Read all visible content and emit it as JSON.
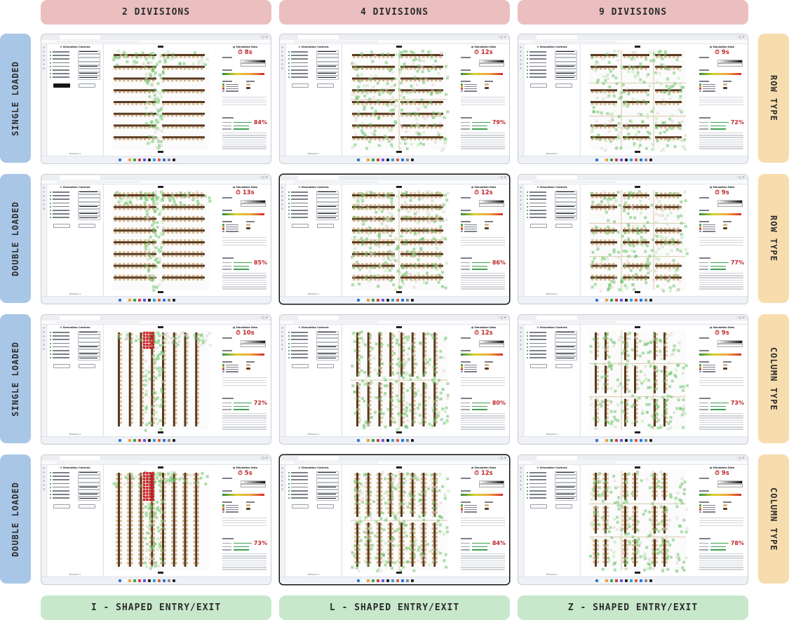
{
  "columns": [
    "2 DIVISIONS",
    "4 DIVISIONS",
    "9 DIVISIONS"
  ],
  "rows_left": [
    "SINGLE LOADED",
    "DOUBLE LOADED",
    "SINGLE LOADED",
    "DOUBLE LOADED"
  ],
  "rows_right": [
    "ROW TYPE",
    "ROW TYPE",
    "COLUMN TYPE",
    "COLUMN TYPE"
  ],
  "footers": [
    "I - SHAPED ENTRY/EXIT",
    "L - SHAPED ENTRY/EXIT",
    "Z - SHAPED ENTRY/EXIT"
  ],
  "screenshots": [
    {
      "time": "8s",
      "score": "84%",
      "layout": "row",
      "divisions": 2,
      "loading": "single",
      "dark_frame": false
    },
    {
      "time": "12s",
      "score": "79%",
      "layout": "row",
      "divisions": 4,
      "loading": "single",
      "dark_frame": false
    },
    {
      "time": "9s",
      "score": "72%",
      "layout": "row",
      "divisions": 9,
      "loading": "single",
      "dark_frame": false
    },
    {
      "time": "13s",
      "score": "85%",
      "layout": "row",
      "divisions": 2,
      "loading": "double",
      "dark_frame": false
    },
    {
      "time": "12s",
      "score": "86%",
      "layout": "row",
      "divisions": 4,
      "loading": "double",
      "dark_frame": true
    },
    {
      "time": "9s",
      "score": "77%",
      "layout": "row",
      "divisions": 9,
      "loading": "double",
      "dark_frame": false
    },
    {
      "time": "10s",
      "score": "72%",
      "layout": "col",
      "divisions": 2,
      "loading": "single",
      "dark_frame": false
    },
    {
      "time": "12s",
      "score": "80%",
      "layout": "col",
      "divisions": 4,
      "loading": "single",
      "dark_frame": false
    },
    {
      "time": "9s",
      "score": "73%",
      "layout": "col",
      "divisions": 9,
      "loading": "single",
      "dark_frame": false
    },
    {
      "time": "5s",
      "score": "73%",
      "layout": "col",
      "divisions": 2,
      "loading": "double",
      "dark_frame": false
    },
    {
      "time": "12s",
      "score": "84%",
      "layout": "col",
      "divisions": 4,
      "loading": "double",
      "dark_frame": true
    },
    {
      "time": "9s",
      "score": "78%",
      "layout": "col",
      "divisions": 9,
      "loading": "double",
      "dark_frame": false
    }
  ],
  "colors": {
    "header_top": "#ebbfc0",
    "header_bottom": "#c8e8cc",
    "side_left": "#a8c6e6",
    "side_right": "#f7dcae",
    "desk_dark": "#5a3a1f",
    "desk_light": "#d7b88d",
    "heat_green": "#6cc56a",
    "heat_red": "#d21f2a",
    "timer_red": "#c0282b"
  }
}
